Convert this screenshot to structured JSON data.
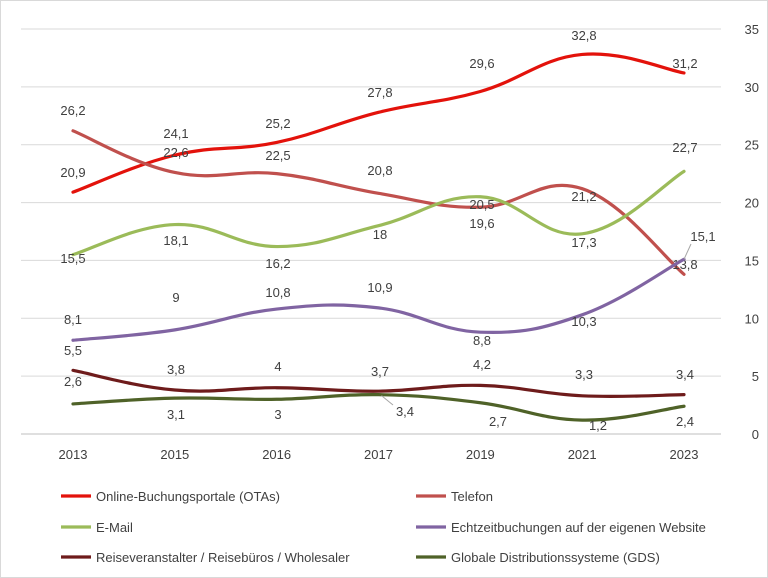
{
  "chart_data": {
    "type": "line",
    "categories": [
      "2013",
      "2015",
      "2016",
      "2017",
      "2019",
      "2021",
      "2023"
    ],
    "ylim": [
      0,
      35
    ],
    "yticks": [
      0,
      5,
      10,
      15,
      20,
      25,
      30,
      35
    ],
    "y_axis_side": "right",
    "grid": true,
    "legend": "bottom",
    "series": [
      {
        "name": "Online-Buchungsportale (OTAs)",
        "color": "#e3120b",
        "values": [
          20.9,
          24.1,
          25.2,
          27.8,
          29.6,
          32.8,
          31.2
        ],
        "labels": [
          "20,9",
          "24,1",
          "25,2",
          "27,8",
          "29,6",
          "32,8",
          "31,2"
        ]
      },
      {
        "name": "Telefon",
        "color": "#c0504d",
        "values": [
          26.2,
          22.6,
          22.5,
          20.8,
          19.6,
          21.2,
          13.8
        ],
        "labels": [
          "26,2",
          "22,6",
          "22,5",
          "20,8",
          "19,6",
          "21,2",
          "13,8"
        ]
      },
      {
        "name": "E-Mail",
        "color": "#9bbb59",
        "values": [
          15.5,
          18.1,
          16.2,
          18,
          20.5,
          17.3,
          22.7
        ],
        "labels": [
          "15,5",
          "18,1",
          "16,2",
          "18",
          "20,5",
          "17,3",
          "22,7"
        ]
      },
      {
        "name": "Echtzeitbuchungen auf der eigenen Website",
        "color": "#8064a2",
        "values": [
          8.1,
          9,
          10.8,
          10.9,
          8.8,
          10.3,
          15.1
        ],
        "labels": [
          "8,1",
          "9",
          "10,8",
          "10,9",
          "8,8",
          "10,3",
          "15,1"
        ]
      },
      {
        "name": "Reiseveranstalter / Reisebüros / Wholesaler",
        "color": "#6e1b1b",
        "values": [
          5.5,
          3.8,
          4,
          3.7,
          4.2,
          3.3,
          3.4
        ],
        "labels": [
          "5,5",
          "3,8",
          "4",
          "3,7",
          "4,2",
          "3,3",
          "3,4"
        ]
      },
      {
        "name": "Globale Distributionssysteme (GDS)",
        "color": "#4f6228",
        "values": [
          2.6,
          3.1,
          3,
          3.4,
          2.7,
          1.2,
          2.4
        ],
        "labels": [
          "2,6",
          "3,1",
          "3",
          "3,4",
          "2,7",
          "1,2",
          "2,4"
        ]
      }
    ]
  }
}
